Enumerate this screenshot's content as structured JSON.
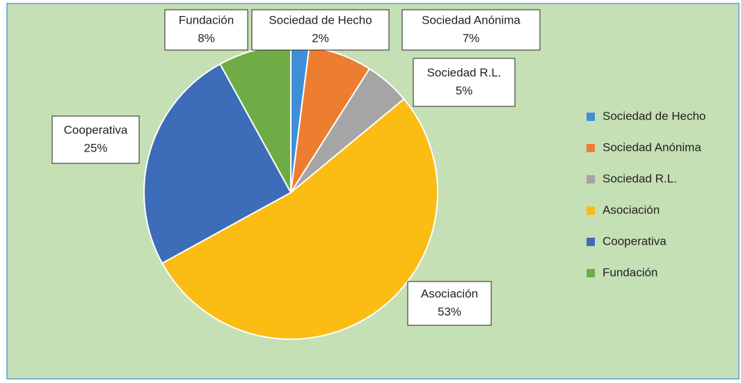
{
  "chart_data": {
    "type": "pie",
    "categories": [
      "Sociedad de Hecho",
      "Sociedad Anónima",
      "Sociedad R.L.",
      "Asociación",
      "Cooperativa",
      "Fundación"
    ],
    "values": [
      2,
      7,
      5,
      53,
      25,
      8
    ],
    "value_labels": [
      "2%",
      "7%",
      "5%",
      "53%",
      "25%",
      "8%"
    ],
    "colors": [
      "#3f8fd8",
      "#ed7d31",
      "#a5a5a5",
      "#fbbd14",
      "#3d6cb8",
      "#6fac46"
    ],
    "legend": "right"
  }
}
